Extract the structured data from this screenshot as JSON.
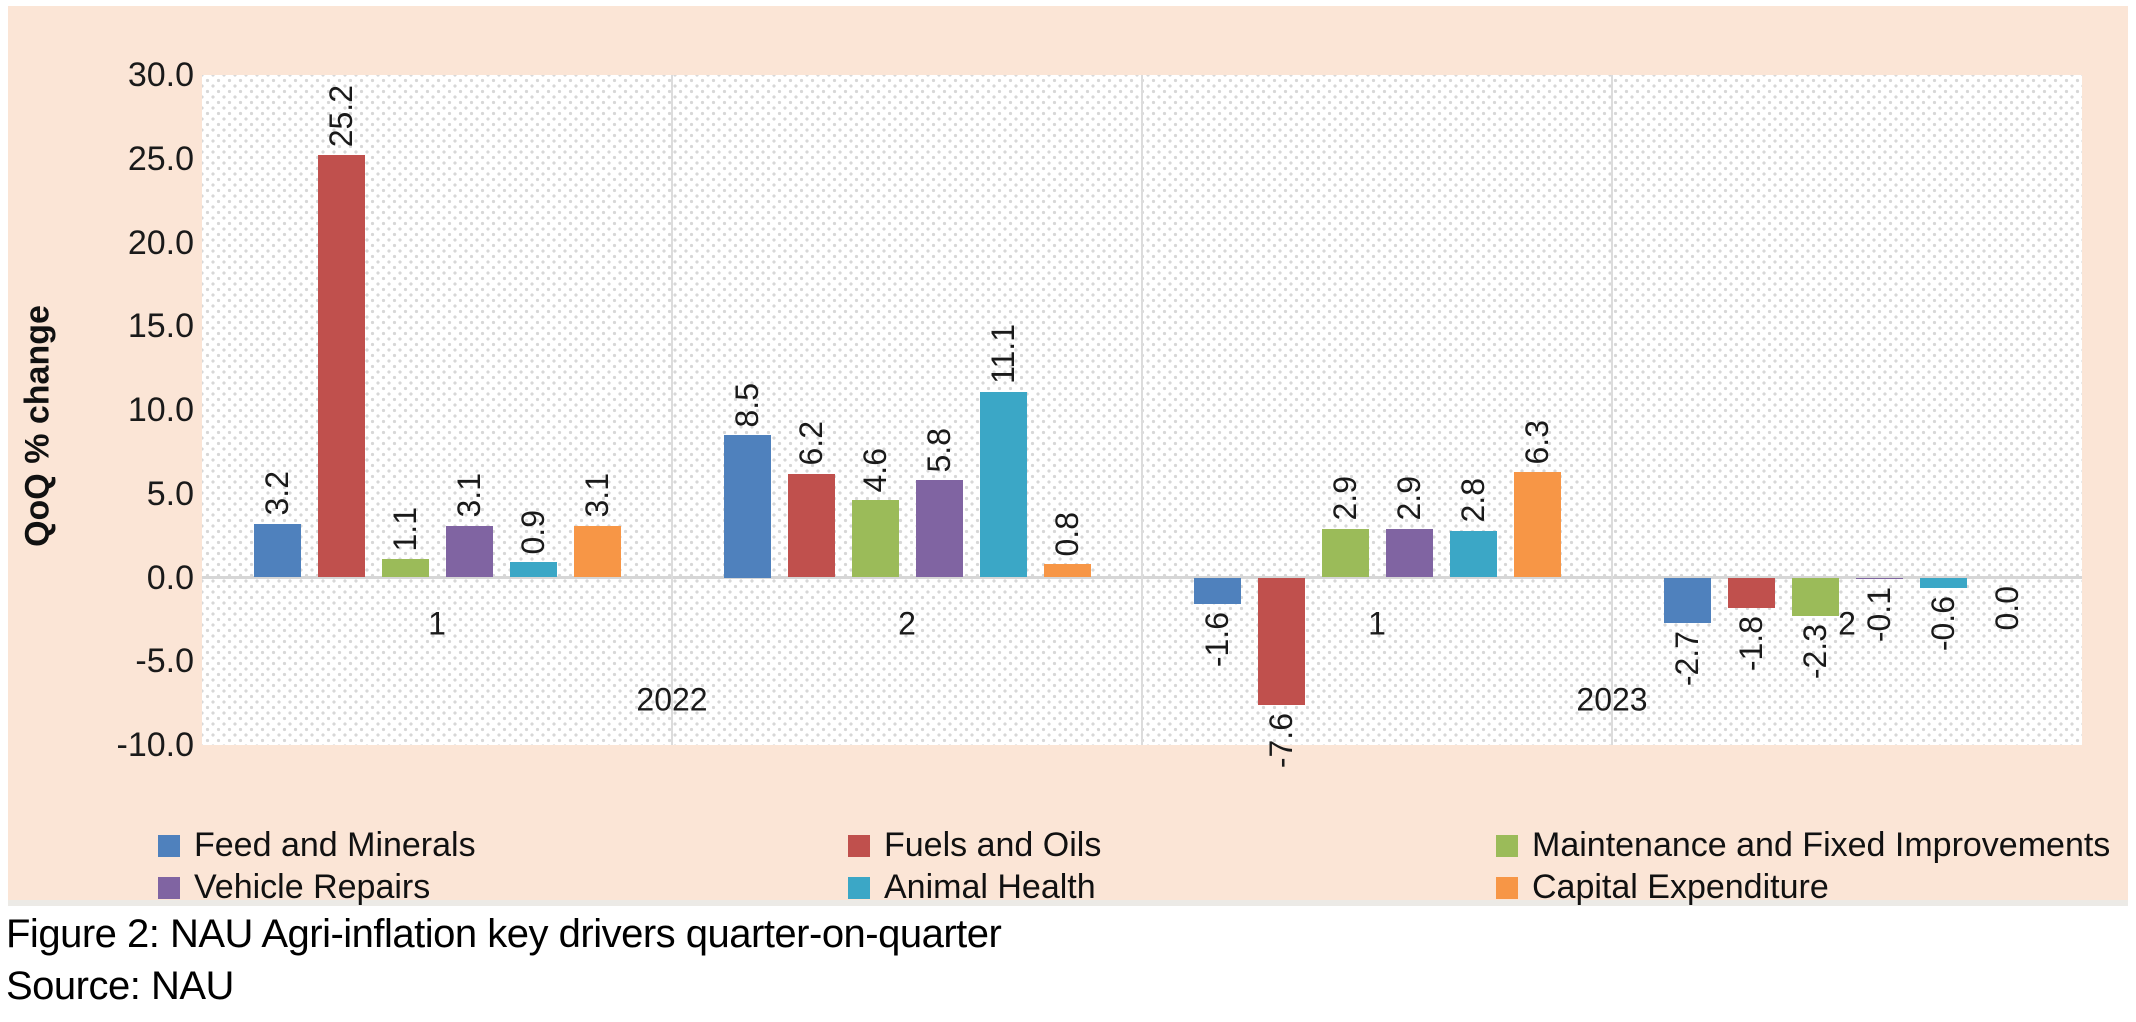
{
  "figure": {
    "caption": "Figure 2: NAU Agri-inflation key drivers quarter-on-quarter",
    "source": "Source: NAU"
  },
  "chart_data": {
    "type": "bar",
    "title": "",
    "ylabel": "QoQ % change",
    "ylim": [
      -10.0,
      30.0
    ],
    "ytick_step": 5.0,
    "yticks": [
      "30.0",
      "25.0",
      "20.0",
      "15.0",
      "10.0",
      "5.0",
      "0.0",
      "-5.0",
      "-10.0"
    ],
    "grid": "none",
    "plot_background": "diagonal-dot-hatch",
    "background_color": "#FBE5D6",
    "series": [
      {
        "name": "Feed and Minerals",
        "color": "#4F81BD"
      },
      {
        "name": "Fuels and Oils",
        "color": "#C0504D"
      },
      {
        "name": "Maintenance and Fixed Improvements",
        "color": "#9BBB59"
      },
      {
        "name": "Vehicle Repairs",
        "color": "#8064A2"
      },
      {
        "name": "Animal Health",
        "color": "#3BA7C6"
      },
      {
        "name": "Capital Expenditure",
        "color": "#F79646"
      }
    ],
    "groups": [
      {
        "year": "2022",
        "quarter": "1",
        "values": [
          3.2,
          25.2,
          1.1,
          3.1,
          0.9,
          3.1
        ]
      },
      {
        "year": "2022",
        "quarter": "2",
        "values": [
          8.5,
          6.2,
          4.6,
          5.8,
          11.1,
          0.8
        ]
      },
      {
        "year": "2023",
        "quarter": "1",
        "values": [
          -1.6,
          -7.6,
          2.9,
          2.9,
          2.8,
          6.3
        ]
      },
      {
        "year": "2023",
        "quarter": "2",
        "values": [
          -2.7,
          -1.8,
          -2.3,
          -0.1,
          -0.6,
          0.0
        ]
      }
    ],
    "year_axis": [
      {
        "label": "2022",
        "panels": [
          0,
          1
        ]
      },
      {
        "label": "2023",
        "panels": [
          2,
          3
        ]
      }
    ],
    "legend": {
      "position": "bottom",
      "columns": [
        [
          0,
          3
        ],
        [
          1,
          4
        ],
        [
          2,
          5
        ]
      ]
    },
    "data_label_rotation_deg": -90,
    "data_label_format": "0.0"
  }
}
